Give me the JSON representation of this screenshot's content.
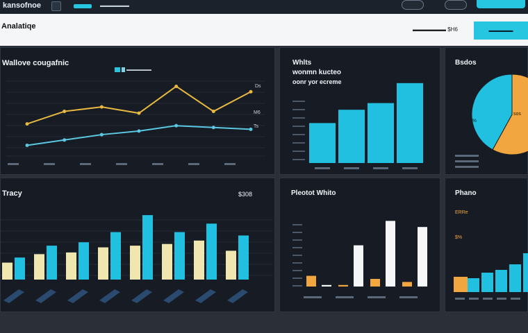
{
  "header": {
    "brand": "kansofnoe",
    "tab_label": "▬▬▬▬▬▬"
  },
  "subheader": {
    "title": "Analatiqe",
    "meta_label": "▬▬▬▬▬▬ $H6",
    "button_label": "▬▬▬▬▬"
  },
  "line_card": {
    "title": "Wallove cougafnic",
    "legend_label": "▬▬▬▬▬▬",
    "right_labels": [
      "Ds",
      "M6",
      "Ts"
    ],
    "chart_data": {
      "type": "line",
      "x": [
        1,
        2,
        3,
        4,
        5,
        6,
        7
      ],
      "series": [
        {
          "values": [
            36,
            50,
            55,
            48,
            78,
            50,
            72
          ]
        },
        {
          "values": [
            12,
            18,
            24,
            28,
            34,
            32,
            30
          ]
        }
      ],
      "ylim": [
        0,
        90
      ]
    },
    "colors": {
      "series1": "#e8b840",
      "series2": "#5ac8e0"
    }
  },
  "bar_card": {
    "title_line1": "Whlts",
    "title_line2": "wonmn kucteo",
    "title_line3": "oonr yor ecreme",
    "chart_data": {
      "type": "bar",
      "values": [
        48,
        64,
        72,
        96
      ],
      "ylim": [
        0,
        100
      ]
    },
    "color": "#22c0e0"
  },
  "pie_card": {
    "title": "Bsdos",
    "label_left": "S%",
    "label_right": "sos",
    "chart_data": {
      "type": "pie",
      "values": [
        58,
        42
      ]
    },
    "colors": [
      "#f2a640",
      "#22c0e0"
    ]
  },
  "trend_card": {
    "title": "Tracy",
    "value_label": "$308",
    "chart_data": {
      "type": "bar",
      "series": [
        {
          "values": [
            20,
            30,
            32,
            38,
            40,
            42,
            46,
            34
          ]
        },
        {
          "values": [
            26,
            40,
            44,
            56,
            76,
            56,
            66,
            52
          ]
        }
      ],
      "ylim": [
        0,
        90
      ]
    },
    "colors": {
      "series1": "#f0e6b0",
      "series2": "#22c0e0"
    }
  },
  "paired_card": {
    "title": "Pleotot Whito",
    "chart_data": {
      "type": "bar",
      "series": [
        {
          "values": [
            14,
            2,
            10,
            6
          ]
        },
        {
          "values": [
            2,
            54,
            86,
            78
          ]
        }
      ],
      "ylim": [
        0,
        100
      ]
    },
    "colors": {
      "series1": "#f2a640",
      "series2": "#f4f6f8"
    }
  },
  "side_card": {
    "title": "Phano",
    "label1": "ERRe",
    "label2": "$%",
    "chart_data": {
      "type": "bar",
      "values": [
        20,
        28,
        32,
        40,
        56
      ],
      "ylim": [
        0,
        100
      ]
    },
    "colors": {
      "bar": "#22c0e0",
      "accent": "#f2a640"
    }
  }
}
